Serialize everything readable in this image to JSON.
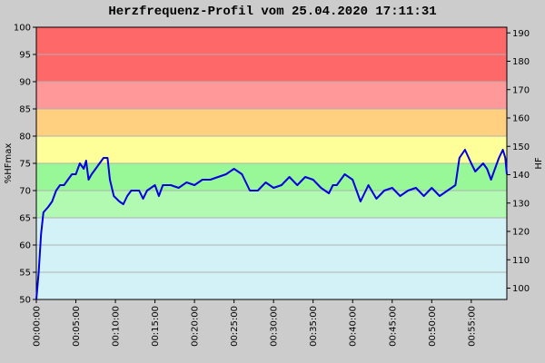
{
  "chart_data": {
    "type": "line",
    "title": "Herzfrequenz-Profil vom 25.04.2020 17:11:31",
    "y_label": "%HFmax",
    "y2_label": "HF",
    "xlim": [
      0,
      59.5
    ],
    "xticks": [
      {
        "value": 0,
        "label": "00:00:00"
      },
      {
        "value": 5,
        "label": "00:05:00"
      },
      {
        "value": 10,
        "label": "00:10:00"
      },
      {
        "value": 15,
        "label": "00:15:00"
      },
      {
        "value": 20,
        "label": "00:20:00"
      },
      {
        "value": 25,
        "label": "00:25:00"
      },
      {
        "value": 30,
        "label": "00:30:00"
      },
      {
        "value": 35,
        "label": "00:35:00"
      },
      {
        "value": 40,
        "label": "00:40:00"
      },
      {
        "value": 45,
        "label": "00:45:00"
      },
      {
        "value": 50,
        "label": "00:50:00"
      },
      {
        "value": 55,
        "label": "00:55:00"
      }
    ],
    "ylim": [
      50,
      100
    ],
    "yticks": [
      50,
      55,
      60,
      65,
      70,
      75,
      80,
      85,
      90,
      95,
      100
    ],
    "y2lim": [
      96,
      192
    ],
    "y2ticks": [
      100,
      110,
      120,
      130,
      140,
      150,
      160,
      170,
      180,
      190
    ],
    "grid": true,
    "zones": [
      {
        "from": 50,
        "to": 65,
        "color": "#d2f2f8"
      },
      {
        "from": 65,
        "to": 70,
        "color": "#b2fab2"
      },
      {
        "from": 70,
        "to": 75,
        "color": "#98f898"
      },
      {
        "from": 75,
        "to": 80,
        "color": "#ffff99"
      },
      {
        "from": 80,
        "to": 85,
        "color": "#ffd080"
      },
      {
        "from": 85,
        "to": 90,
        "color": "#ff9999"
      },
      {
        "from": 90,
        "to": 100,
        "color": "#ff6868"
      }
    ],
    "x": [
      0,
      0.3,
      0.6,
      0.9,
      1.5,
      2,
      2.5,
      3,
      3.5,
      4,
      4.5,
      5,
      5.5,
      6,
      6.3,
      6.6,
      7,
      7.5,
      8,
      8.5,
      9,
      9.3,
      9.8,
      10.5,
      11,
      11.5,
      12,
      13,
      13.5,
      14,
      15,
      15.5,
      16,
      17,
      18,
      19,
      20,
      21,
      22,
      23,
      24,
      25,
      26,
      27,
      28,
      29,
      30,
      31,
      32,
      33,
      34,
      35,
      36,
      37,
      37.5,
      38,
      39,
      40,
      41,
      42,
      43,
      44,
      45,
      46,
      47,
      48,
      49,
      50,
      51,
      52,
      53,
      53.5,
      54.2,
      55,
      55.5,
      56.5,
      57,
      57.5,
      58,
      58.5,
      59,
      59.3,
      59.5
    ],
    "series": [
      {
        "name": "HF",
        "color": "#0000e0",
        "values": [
          50,
          55,
          62,
          66,
          67,
          68,
          70,
          71,
          71,
          72,
          73,
          73,
          75,
          74,
          75.5,
          72,
          73,
          74,
          75,
          76,
          76,
          72,
          69,
          68,
          67.5,
          69,
          70,
          70,
          68.5,
          70,
          71,
          69,
          71,
          71,
          70.5,
          71.5,
          71,
          72,
          72,
          72.5,
          73,
          74,
          73,
          70,
          70,
          71.5,
          70.5,
          71,
          72.5,
          71,
          72.5,
          72,
          70.5,
          69.5,
          71,
          71,
          73,
          72,
          68,
          71,
          68.5,
          70,
          70.5,
          69,
          70,
          70.5,
          69,
          70.5,
          69,
          70,
          71,
          76,
          77.5,
          75,
          73.5,
          75,
          74,
          72,
          74,
          76,
          77.5,
          76,
          73
        ]
      }
    ]
  }
}
